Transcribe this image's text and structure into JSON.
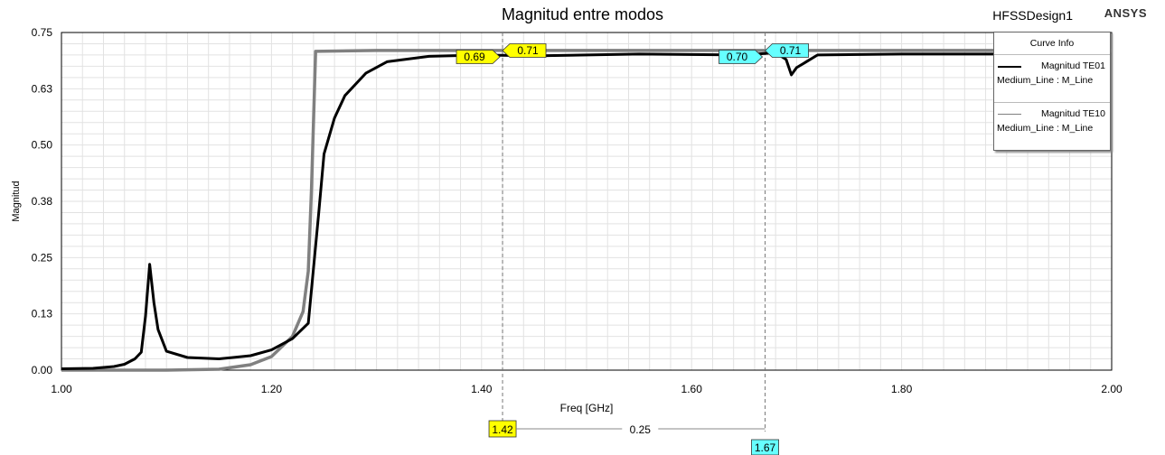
{
  "header": {
    "design_name": "HFSSDesign1",
    "brand": "ANSYS"
  },
  "legend": {
    "title": "Curve Info",
    "entries": [
      {
        "name": "Magnitud TE01",
        "dataset": "Medium_Line : M_Line",
        "color": "#000000"
      },
      {
        "name": "Magnitud TE10",
        "dataset": "Medium_Line : M_Line",
        "color": "#808080"
      }
    ]
  },
  "markers": {
    "cursor1": {
      "x": 1.42,
      "label": "1.42",
      "values": [
        "0.69",
        "0.71"
      ],
      "color": "#ffff00"
    },
    "cursor2": {
      "x": 1.67,
      "label": "1.67",
      "values": [
        "0.70",
        "0.71"
      ],
      "color": "#66ffff"
    },
    "delta_label": "0.25"
  },
  "chart_data": {
    "type": "line",
    "title": "Magnitud entre modos",
    "xlabel": "Freq [GHz]",
    "ylabel": "Magnitud",
    "xlim": [
      1.0,
      2.0
    ],
    "ylim": [
      0.0,
      0.75
    ],
    "x_tick_labels": [
      "1.00",
      "1.20",
      "1.40",
      "1.60",
      "1.80",
      "2.00"
    ],
    "y_tick_labels": [
      "0.00",
      "0.13",
      "0.25",
      "0.38",
      "0.50",
      "0.63",
      "0.75"
    ],
    "grid": true,
    "legend_position": "top-right",
    "series": [
      {
        "name": "Magnitud TE01",
        "color": "#000000",
        "points": [
          [
            1.0,
            0.003
          ],
          [
            1.03,
            0.004
          ],
          [
            1.05,
            0.008
          ],
          [
            1.06,
            0.013
          ],
          [
            1.07,
            0.025
          ],
          [
            1.076,
            0.04
          ],
          [
            1.08,
            0.12
          ],
          [
            1.084,
            0.235
          ],
          [
            1.088,
            0.15
          ],
          [
            1.092,
            0.09
          ],
          [
            1.1,
            0.042
          ],
          [
            1.12,
            0.028
          ],
          [
            1.15,
            0.025
          ],
          [
            1.18,
            0.032
          ],
          [
            1.2,
            0.045
          ],
          [
            1.22,
            0.07
          ],
          [
            1.235,
            0.104
          ],
          [
            1.245,
            0.35
          ],
          [
            1.25,
            0.48
          ],
          [
            1.26,
            0.56
          ],
          [
            1.27,
            0.61
          ],
          [
            1.29,
            0.66
          ],
          [
            1.31,
            0.685
          ],
          [
            1.35,
            0.697
          ],
          [
            1.4,
            0.7
          ],
          [
            1.45,
            0.698
          ],
          [
            1.55,
            0.702
          ],
          [
            1.65,
            0.7
          ],
          [
            1.68,
            0.705
          ],
          [
            1.69,
            0.69
          ],
          [
            1.695,
            0.656
          ],
          [
            1.7,
            0.672
          ],
          [
            1.72,
            0.7
          ],
          [
            1.8,
            0.702
          ],
          [
            2.0,
            0.702
          ]
        ]
      },
      {
        "name": "Magnitud TE10",
        "color": "#808080",
        "points": [
          [
            1.0,
            0.0
          ],
          [
            1.1,
            0.0
          ],
          [
            1.15,
            0.002
          ],
          [
            1.18,
            0.012
          ],
          [
            1.2,
            0.03
          ],
          [
            1.22,
            0.075
          ],
          [
            1.23,
            0.13
          ],
          [
            1.235,
            0.22
          ],
          [
            1.238,
            0.4
          ],
          [
            1.242,
            0.708
          ],
          [
            1.3,
            0.71
          ],
          [
            1.4,
            0.71
          ],
          [
            1.6,
            0.71
          ],
          [
            1.7,
            0.71
          ],
          [
            2.0,
            0.71
          ]
        ]
      }
    ]
  }
}
